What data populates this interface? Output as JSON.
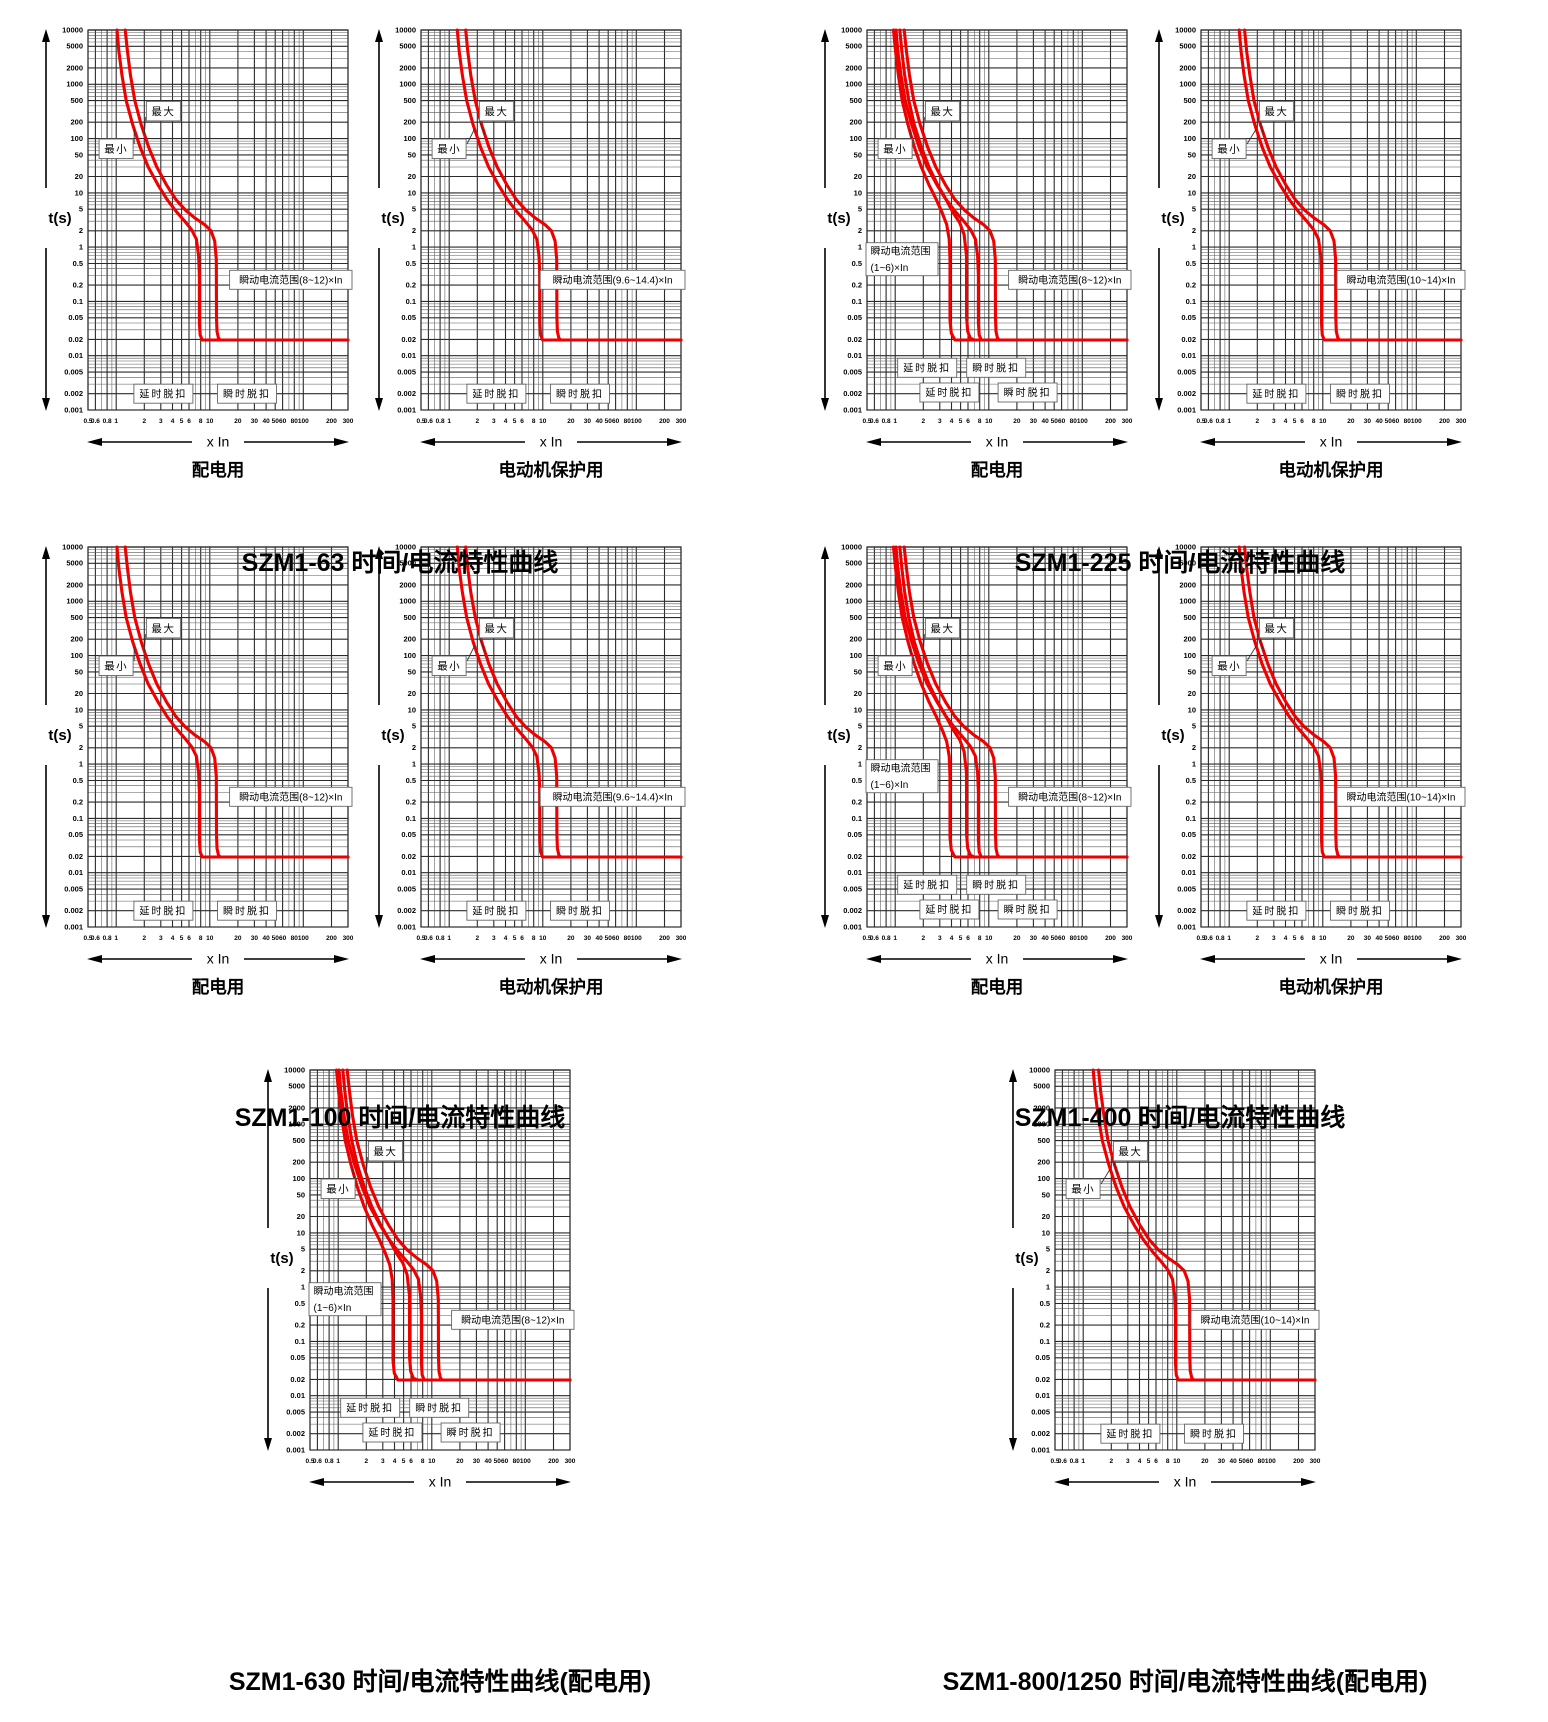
{
  "axes": {
    "y_label": "t(s)",
    "x_label": "x In",
    "y_ticks": [
      "10000",
      "5000",
      "2000",
      "1000",
      "500",
      "200",
      "100",
      "50",
      "20",
      "10",
      "5",
      "2",
      "1",
      "0.5",
      "0.2",
      "0.1",
      "0.05",
      "0.02",
      "0.01",
      "0.005",
      "0.002",
      "0.001"
    ],
    "x_ticks": [
      "0.5",
      "0.6",
      "0.8",
      "1",
      "2",
      "3",
      "4",
      "5",
      "6",
      "8",
      "10",
      "20",
      "30",
      "40",
      "50",
      "60",
      "80",
      "100",
      "200",
      "300"
    ],
    "xlim": [
      0.5,
      300
    ],
    "ylim": [
      0.001,
      10000
    ],
    "x_scale": "log",
    "y_scale": "log",
    "grid": true
  },
  "colors": {
    "curve": "#ee0000",
    "grid_major": "#2b2b2b",
    "grid_minor": "#585858",
    "text": "#000000",
    "annotation_border": "#666666",
    "background": "#ffffff"
  },
  "labels": {
    "max": "最大",
    "min": "最小",
    "delay_trip": "延时脱扣",
    "instant_trip": "瞬时脱扣"
  },
  "groups": [
    {
      "title": "SZM1-63 时间/电流特性曲线"
    },
    {
      "title": "SZM1-225 时间/电流特性曲线"
    },
    {
      "title": "SZM1-100 时间/电流特性曲线"
    },
    {
      "title": "SZM1-400 时间/电流特性曲线"
    },
    {
      "title": "SZM1-630 时间/电流特性曲线(配电用)"
    },
    {
      "title": "SZM1-800/1250 时间/电流特性曲线(配电用)"
    }
  ],
  "curve_library": {
    "min_8": [
      [
        1.02,
        10000
      ],
      [
        1.07,
        4000
      ],
      [
        1.15,
        1500
      ],
      [
        1.28,
        500
      ],
      [
        1.5,
        180
      ],
      [
        1.8,
        70
      ],
      [
        2.2,
        30
      ],
      [
        2.8,
        14
      ],
      [
        3.5,
        7.5
      ],
      [
        4.4,
        4.5
      ],
      [
        5.4,
        3.0
      ],
      [
        6.4,
        2.1
      ],
      [
        7.2,
        1.4
      ],
      [
        7.6,
        0.7
      ],
      [
        7.75,
        0.3
      ],
      [
        7.75,
        0.04
      ],
      [
        7.9,
        0.024
      ],
      [
        8.3,
        0.0195
      ],
      [
        300,
        0.0195
      ]
    ],
    "max_12": [
      [
        1.25,
        10000
      ],
      [
        1.32,
        4000
      ],
      [
        1.42,
        1500
      ],
      [
        1.58,
        500
      ],
      [
        1.85,
        180
      ],
      [
        2.22,
        70
      ],
      [
        2.72,
        30
      ],
      [
        3.45,
        14
      ],
      [
        4.35,
        7.5
      ],
      [
        5.5,
        4.8
      ],
      [
        7.0,
        3.4
      ],
      [
        8.8,
        2.6
      ],
      [
        10.3,
        2.0
      ],
      [
        11.3,
        1.3
      ],
      [
        11.75,
        0.6
      ],
      [
        11.8,
        0.05
      ],
      [
        11.95,
        0.028
      ],
      [
        12.4,
        0.021
      ],
      [
        13.0,
        0.0195
      ],
      [
        300,
        0.0195
      ]
    ],
    "min_1_6": [
      [
        0.96,
        10000
      ],
      [
        1.01,
        4000
      ],
      [
        1.08,
        1500
      ],
      [
        1.19,
        500
      ],
      [
        1.37,
        180
      ],
      [
        1.6,
        70
      ],
      [
        1.9,
        30
      ],
      [
        2.3,
        14
      ],
      [
        2.75,
        7.5
      ],
      [
        3.2,
        4.2
      ],
      [
        3.55,
        2.6
      ],
      [
        3.78,
        1.4
      ],
      [
        3.85,
        0.6
      ],
      [
        3.85,
        0.045
      ],
      [
        3.98,
        0.026
      ],
      [
        4.35,
        0.0195
      ],
      [
        300,
        0.0195
      ]
    ],
    "max_1_6": [
      [
        1.12,
        10000
      ],
      [
        1.18,
        4000
      ],
      [
        1.26,
        1500
      ],
      [
        1.4,
        500
      ],
      [
        1.6,
        180
      ],
      [
        1.9,
        70
      ],
      [
        2.3,
        30
      ],
      [
        2.85,
        14
      ],
      [
        3.5,
        7.5
      ],
      [
        4.2,
        4.2
      ],
      [
        4.9,
        2.8
      ],
      [
        5.45,
        1.7
      ],
      [
        5.78,
        0.7
      ],
      [
        5.8,
        0.05
      ],
      [
        5.95,
        0.028
      ],
      [
        6.35,
        0.021
      ],
      [
        7.0,
        0.0195
      ],
      [
        300,
        0.0195
      ]
    ],
    "min_9_6": [
      [
        1.22,
        10000
      ],
      [
        1.28,
        4000
      ],
      [
        1.38,
        1500
      ],
      [
        1.54,
        500
      ],
      [
        1.8,
        180
      ],
      [
        2.16,
        70
      ],
      [
        2.64,
        30
      ],
      [
        3.36,
        14
      ],
      [
        4.2,
        7.5
      ],
      [
        5.28,
        4.5
      ],
      [
        6.48,
        3.0
      ],
      [
        7.68,
        2.1
      ],
      [
        8.64,
        1.4
      ],
      [
        9.12,
        0.7
      ],
      [
        9.3,
        0.3
      ],
      [
        9.3,
        0.04
      ],
      [
        9.48,
        0.024
      ],
      [
        9.96,
        0.0195
      ],
      [
        300,
        0.0195
      ]
    ],
    "max_14_4": [
      [
        1.5,
        10000
      ],
      [
        1.58,
        4000
      ],
      [
        1.7,
        1500
      ],
      [
        1.9,
        500
      ],
      [
        2.22,
        180
      ],
      [
        2.66,
        70
      ],
      [
        3.26,
        30
      ],
      [
        4.14,
        14
      ],
      [
        5.22,
        7.5
      ],
      [
        6.6,
        4.8
      ],
      [
        8.4,
        3.4
      ],
      [
        10.56,
        2.6
      ],
      [
        12.36,
        2.0
      ],
      [
        13.56,
        1.3
      ],
      [
        14.1,
        0.6
      ],
      [
        14.16,
        0.05
      ],
      [
        14.34,
        0.028
      ],
      [
        14.88,
        0.021
      ],
      [
        15.6,
        0.0195
      ],
      [
        300,
        0.0195
      ]
    ],
    "min_10": [
      [
        1.28,
        10000
      ],
      [
        1.34,
        4000
      ],
      [
        1.44,
        1500
      ],
      [
        1.6,
        500
      ],
      [
        1.88,
        180
      ],
      [
        2.25,
        70
      ],
      [
        2.75,
        30
      ],
      [
        3.5,
        14
      ],
      [
        4.38,
        7.5
      ],
      [
        5.5,
        4.5
      ],
      [
        6.75,
        3.0
      ],
      [
        8.0,
        2.1
      ],
      [
        9.0,
        1.4
      ],
      [
        9.5,
        0.7
      ],
      [
        9.7,
        0.3
      ],
      [
        9.7,
        0.04
      ],
      [
        9.88,
        0.024
      ],
      [
        10.38,
        0.0195
      ],
      [
        300,
        0.0195
      ]
    ],
    "max_14": [
      [
        1.46,
        10000
      ],
      [
        1.54,
        4000
      ],
      [
        1.66,
        1500
      ],
      [
        1.84,
        500
      ],
      [
        2.16,
        180
      ],
      [
        2.59,
        70
      ],
      [
        3.17,
        30
      ],
      [
        4.03,
        14
      ],
      [
        5.08,
        7.5
      ],
      [
        6.42,
        4.8
      ],
      [
        8.17,
        3.4
      ],
      [
        10.27,
        2.6
      ],
      [
        12.0,
        2.0
      ],
      [
        13.2,
        1.3
      ],
      [
        13.7,
        0.6
      ],
      [
        13.77,
        0.05
      ],
      [
        13.94,
        0.028
      ],
      [
        14.5,
        0.021
      ],
      [
        15.2,
        0.0195
      ],
      [
        300,
        0.0195
      ]
    ]
  },
  "chart_data": [
    {
      "id": "szm1-63-dist",
      "type": "line",
      "group_title": "SZM1-63 时间/电流特性曲线",
      "subtitle": "配电用",
      "x_label": "x In",
      "y_label": "t(s)",
      "xlim": [
        0.5,
        300
      ],
      "ylim": [
        0.001,
        10000
      ],
      "x_scale": "log",
      "y_scale": "log",
      "series": [
        {
          "name": "最小",
          "curve": "min_8"
        },
        {
          "name": "最大",
          "curve": "max_12"
        }
      ],
      "inst_labels": [
        {
          "text": "瞬动电流范围(8~12)×In",
          "anchor": "right",
          "y": 0.25
        }
      ],
      "trip_labels": [
        {
          "text": "延时脱扣",
          "x": 3.2,
          "y": 0.002
        },
        {
          "text": "瞬时脱扣",
          "x": 25,
          "y": 0.002
        }
      ]
    },
    {
      "id": "szm1-63-motor",
      "type": "line",
      "group_title": "SZM1-63 时间/电流特性曲线",
      "subtitle": "电动机保护用",
      "x_label": "x In",
      "y_label": "t(s)",
      "xlim": [
        0.5,
        300
      ],
      "ylim": [
        0.001,
        10000
      ],
      "x_scale": "log",
      "y_scale": "log",
      "series": [
        {
          "name": "最小",
          "curve": "min_9_6"
        },
        {
          "name": "最大",
          "curve": "max_14_4"
        }
      ],
      "inst_labels": [
        {
          "text": "瞬动电流范围(9.6~14.4)×In",
          "anchor": "right",
          "y": 0.25
        }
      ],
      "trip_labels": [
        {
          "text": "延时脱扣",
          "x": 3.2,
          "y": 0.002
        },
        {
          "text": "瞬时脱扣",
          "x": 25,
          "y": 0.002
        }
      ]
    },
    {
      "id": "szm1-225-dist",
      "type": "line",
      "group_title": "SZM1-225 时间/电流特性曲线",
      "subtitle": "配电用",
      "x_label": "x In",
      "y_label": "t(s)",
      "xlim": [
        0.5,
        300
      ],
      "ylim": [
        0.001,
        10000
      ],
      "x_scale": "log",
      "y_scale": "log",
      "series": [
        {
          "name": "最小(1~6)×In",
          "curve": "min_1_6"
        },
        {
          "name": "最大(1~6)×In",
          "curve": "max_1_6"
        },
        {
          "name": "最小(8~12)×In",
          "curve": "min_8"
        },
        {
          "name": "最大(8~12)×In",
          "curve": "max_12"
        }
      ],
      "inst_labels": [
        {
          "lines": [
            "瞬动电流范围",
            "(1~6)×In"
          ],
          "anchor": "left",
          "y": 0.6
        },
        {
          "text": "瞬动电流范围(8~12)×In",
          "anchor": "right",
          "y": 0.25
        }
      ],
      "trip_labels": [
        {
          "text": "延时脱扣",
          "x": 2.2,
          "y": 0.006
        },
        {
          "text": "瞬时脱扣",
          "x": 12,
          "y": 0.006
        },
        {
          "text": "延时脱扣",
          "x": 3.8,
          "y": 0.0021
        },
        {
          "text": "瞬时脱扣",
          "x": 26,
          "y": 0.0021
        }
      ]
    },
    {
      "id": "szm1-225-motor",
      "type": "line",
      "group_title": "SZM1-225 时间/电流特性曲线",
      "subtitle": "电动机保护用",
      "x_label": "x In",
      "y_label": "t(s)",
      "xlim": [
        0.5,
        300
      ],
      "ylim": [
        0.001,
        10000
      ],
      "x_scale": "log",
      "y_scale": "log",
      "series": [
        {
          "name": "最小",
          "curve": "min_10"
        },
        {
          "name": "最大",
          "curve": "max_14"
        }
      ],
      "inst_labels": [
        {
          "text": "瞬动电流范围(10~14)×In",
          "anchor": "right",
          "y": 0.25
        }
      ],
      "trip_labels": [
        {
          "text": "延时脱扣",
          "x": 3.2,
          "y": 0.002
        },
        {
          "text": "瞬时脱扣",
          "x": 25,
          "y": 0.002
        }
      ]
    },
    {
      "id": "szm1-100-dist",
      "type": "line",
      "group_title": "SZM1-100 时间/电流特性曲线",
      "subtitle": "配电用",
      "x_label": "x In",
      "y_label": "t(s)",
      "xlim": [
        0.5,
        300
      ],
      "ylim": [
        0.001,
        10000
      ],
      "x_scale": "log",
      "y_scale": "log",
      "series": [
        {
          "name": "最小",
          "curve": "min_8"
        },
        {
          "name": "最大",
          "curve": "max_12"
        }
      ],
      "inst_labels": [
        {
          "text": "瞬动电流范围(8~12)×In",
          "anchor": "right",
          "y": 0.25
        }
      ],
      "trip_labels": [
        {
          "text": "延时脱扣",
          "x": 3.2,
          "y": 0.002
        },
        {
          "text": "瞬时脱扣",
          "x": 25,
          "y": 0.002
        }
      ]
    },
    {
      "id": "szm1-100-motor",
      "type": "line",
      "group_title": "SZM1-100 时间/电流特性曲线",
      "subtitle": "电动机保护用",
      "x_label": "x In",
      "y_label": "t(s)",
      "xlim": [
        0.5,
        300
      ],
      "ylim": [
        0.001,
        10000
      ],
      "x_scale": "log",
      "y_scale": "log",
      "series": [
        {
          "name": "最小",
          "curve": "min_9_6"
        },
        {
          "name": "最大",
          "curve": "max_14_4"
        }
      ],
      "inst_labels": [
        {
          "text": "瞬动电流范围(9.6~14.4)×In",
          "anchor": "right",
          "y": 0.25
        }
      ],
      "trip_labels": [
        {
          "text": "延时脱扣",
          "x": 3.2,
          "y": 0.002
        },
        {
          "text": "瞬时脱扣",
          "x": 25,
          "y": 0.002
        }
      ]
    },
    {
      "id": "szm1-400-dist",
      "type": "line",
      "group_title": "SZM1-400 时间/电流特性曲线",
      "subtitle": "配电用",
      "x_label": "x In",
      "y_label": "t(s)",
      "xlim": [
        0.5,
        300
      ],
      "ylim": [
        0.001,
        10000
      ],
      "x_scale": "log",
      "y_scale": "log",
      "series": [
        {
          "name": "最小(1~6)×In",
          "curve": "min_1_6"
        },
        {
          "name": "最大(1~6)×In",
          "curve": "max_1_6"
        },
        {
          "name": "最小(8~12)×In",
          "curve": "min_8"
        },
        {
          "name": "最大(8~12)×In",
          "curve": "max_12"
        }
      ],
      "inst_labels": [
        {
          "lines": [
            "瞬动电流范围",
            "(1~6)×In"
          ],
          "anchor": "left",
          "y": 0.6
        },
        {
          "text": "瞬动电流范围(8~12)×In",
          "anchor": "right",
          "y": 0.25
        }
      ],
      "trip_labels": [
        {
          "text": "延时脱扣",
          "x": 2.2,
          "y": 0.006
        },
        {
          "text": "瞬时脱扣",
          "x": 12,
          "y": 0.006
        },
        {
          "text": "延时脱扣",
          "x": 3.8,
          "y": 0.0021
        },
        {
          "text": "瞬时脱扣",
          "x": 26,
          "y": 0.0021
        }
      ]
    },
    {
      "id": "szm1-400-motor",
      "type": "line",
      "group_title": "SZM1-400 时间/电流特性曲线",
      "subtitle": "电动机保护用",
      "x_label": "x In",
      "y_label": "t(s)",
      "xlim": [
        0.5,
        300
      ],
      "ylim": [
        0.001,
        10000
      ],
      "x_scale": "log",
      "y_scale": "log",
      "series": [
        {
          "name": "最小",
          "curve": "min_10"
        },
        {
          "name": "最大",
          "curve": "max_14"
        }
      ],
      "inst_labels": [
        {
          "text": "瞬动电流范围(10~14)×In",
          "anchor": "right",
          "y": 0.25
        }
      ],
      "trip_labels": [
        {
          "text": "延时脱扣",
          "x": 3.2,
          "y": 0.002
        },
        {
          "text": "瞬时脱扣",
          "x": 25,
          "y": 0.002
        }
      ]
    },
    {
      "id": "szm1-630-dist",
      "type": "line",
      "group_title": "SZM1-630 时间/电流特性曲线(配电用)",
      "subtitle": "",
      "x_label": "x In",
      "y_label": "t(s)",
      "xlim": [
        0.5,
        300
      ],
      "ylim": [
        0.001,
        10000
      ],
      "x_scale": "log",
      "y_scale": "log",
      "series": [
        {
          "name": "最小(1~6)×In",
          "curve": "min_1_6"
        },
        {
          "name": "最大(1~6)×In",
          "curve": "max_1_6"
        },
        {
          "name": "最小(8~12)×In",
          "curve": "min_8"
        },
        {
          "name": "最大(8~12)×In",
          "curve": "max_12"
        }
      ],
      "inst_labels": [
        {
          "lines": [
            "瞬动电流范围",
            "(1~6)×In"
          ],
          "anchor": "left",
          "y": 0.6
        },
        {
          "text": "瞬动电流范围(8~12)×In",
          "anchor": "right",
          "y": 0.25
        }
      ],
      "trip_labels": [
        {
          "text": "延时脱扣",
          "x": 2.2,
          "y": 0.006
        },
        {
          "text": "瞬时脱扣",
          "x": 12,
          "y": 0.006
        },
        {
          "text": "延时脱扣",
          "x": 3.8,
          "y": 0.0021
        },
        {
          "text": "瞬时脱扣",
          "x": 26,
          "y": 0.0021
        }
      ]
    },
    {
      "id": "szm1-800-1250-dist",
      "type": "line",
      "group_title": "SZM1-800/1250 时间/电流特性曲线(配电用)",
      "subtitle": "",
      "x_label": "x In",
      "y_label": "t(s)",
      "xlim": [
        0.5,
        300
      ],
      "ylim": [
        0.001,
        10000
      ],
      "x_scale": "log",
      "y_scale": "log",
      "series": [
        {
          "name": "最小",
          "curve": "min_10"
        },
        {
          "name": "最大",
          "curve": "max_14"
        }
      ],
      "inst_labels": [
        {
          "text": "瞬动电流范围(10~14)×In",
          "anchor": "right",
          "y": 0.25
        }
      ],
      "trip_labels": [
        {
          "text": "延时脱扣",
          "x": 3.2,
          "y": 0.002
        },
        {
          "text": "瞬时脱扣",
          "x": 25,
          "y": 0.002
        }
      ]
    }
  ]
}
